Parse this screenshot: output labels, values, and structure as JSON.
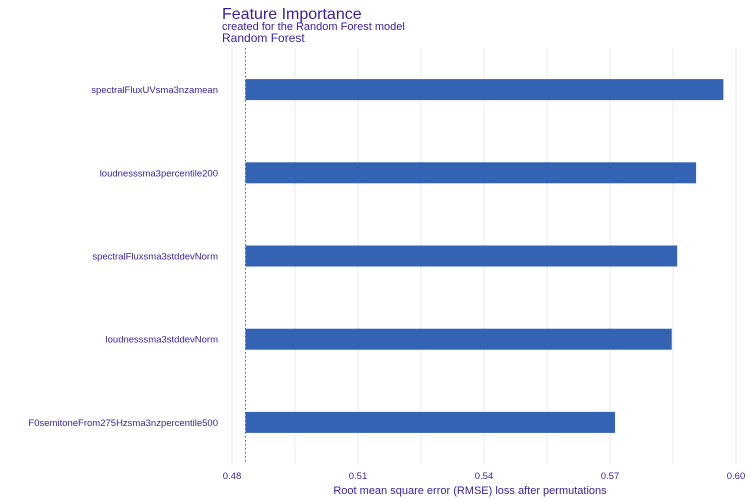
{
  "chart_data": {
    "type": "bar",
    "orientation": "horizontal",
    "title": "Feature Importance",
    "subtitle": "created for the Random Forest model",
    "facet_label": "Random Forest",
    "xlabel": "Root mean square error (RMSE) loss after permutations",
    "ylabel": "",
    "xlim": [
      0.48,
      0.6
    ],
    "xticks": [
      "0.48",
      "0.51",
      "0.54",
      "0.57",
      "0.60"
    ],
    "baseline": 0.4832,
    "categories": [
      "spectralFluxUVsma3nzamean",
      "loudnesssma3percentile200",
      "spectralFluxsma3stddevNorm",
      "loudnesssma3stddevNorm",
      "F0semitoneFrom275Hzsma3nzpercentile500"
    ],
    "values": [
      0.597,
      0.5905,
      0.586,
      0.5847,
      0.5712
    ],
    "grid": true,
    "legend": "none",
    "bar_color": "#3563b4"
  }
}
